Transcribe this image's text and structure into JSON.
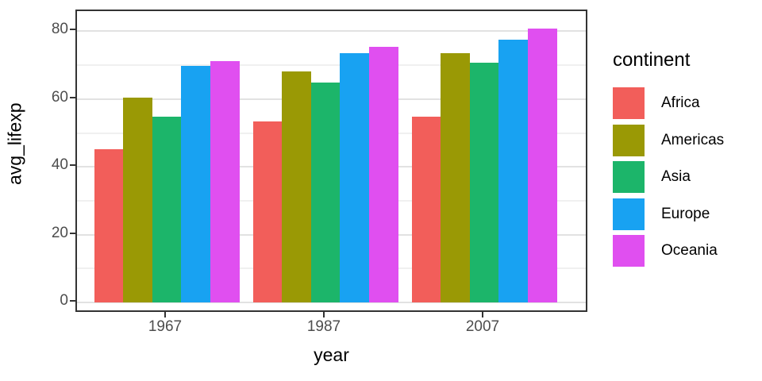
{
  "chart_data": {
    "type": "bar",
    "title": "",
    "xlabel": "year",
    "ylabel": "avg_lifexp",
    "categories": [
      "1967",
      "1987",
      "2007"
    ],
    "series": [
      {
        "name": "Africa",
        "color": "#F25E5A",
        "values": [
          45.3,
          53.3,
          54.8
        ]
      },
      {
        "name": "Americas",
        "color": "#9A9905",
        "values": [
          60.4,
          68.1,
          73.6
        ]
      },
      {
        "name": "Asia",
        "color": "#1CB56A",
        "values": [
          54.7,
          64.9,
          70.7
        ]
      },
      {
        "name": "Europe",
        "color": "#18A2F2",
        "values": [
          69.7,
          73.6,
          77.6
        ]
      },
      {
        "name": "Oceania",
        "color": "#E04FF0",
        "values": [
          71.3,
          75.3,
          80.7
        ]
      }
    ],
    "yticks": [
      0,
      20,
      40,
      60,
      80
    ],
    "minor_yticks": [
      10,
      30,
      50,
      70
    ],
    "ylim": [
      -3.4,
      85.9
    ],
    "grid": true,
    "legend_position": "right"
  },
  "legend": {
    "title": "continent"
  },
  "colors": {
    "panel_border": "#333333",
    "major_grid": "#E2E2E2",
    "minor_grid": "#F0F0F0",
    "tick_text": "#4D4D4D",
    "axis_title_text": "#000000"
  }
}
